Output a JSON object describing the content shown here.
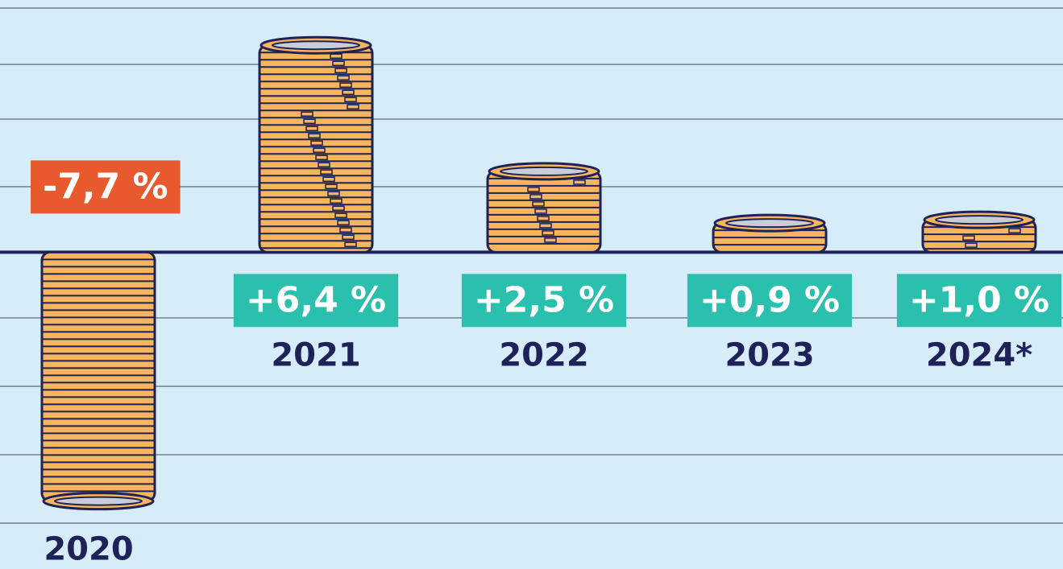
{
  "chart_data": {
    "type": "bar",
    "categories": [
      "2020",
      "2021",
      "2022",
      "2023",
      "2024*"
    ],
    "values": [
      -7.7,
      6.4,
      2.5,
      0.9,
      1.0
    ],
    "value_labels": [
      "-7,7 %",
      "+6,4 %",
      "+2,5 %",
      "+0,9 %",
      "+1,0 %"
    ],
    "color": "#f7b55d",
    "positive_label_color": "#2bbfad",
    "negative_label_color": "#e85a2e",
    "ylim": [
      -9.8,
      7.8
    ]
  }
}
